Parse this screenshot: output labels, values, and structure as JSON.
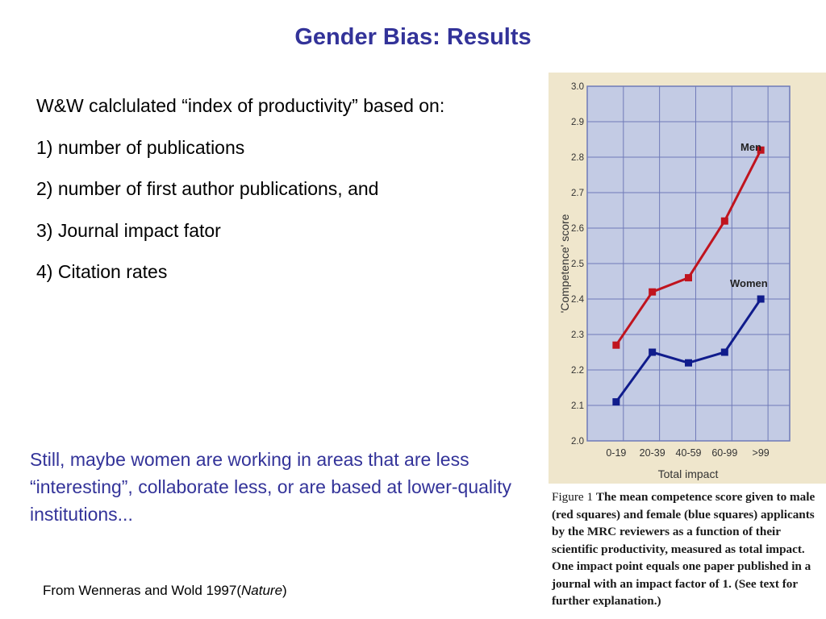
{
  "slide": {
    "title": "Gender Bias: Results",
    "bullets": [
      "W&W calclulated “index of productivity” based on:",
      "1) number of publications",
      "2) number of first author publications, and",
      "3) Journal impact fator",
      "4) Citation rates"
    ],
    "note": "Still, maybe women are working in areas that are less “interesting”, collaborate less, or are based at lower-quality institutions...",
    "source_prefix": "From Wenneras and Wold 1997(",
    "source_journal": "Nature",
    "source_suffix": ")"
  },
  "figure": {
    "caption_label": "Figure 1",
    "caption_text": "The mean competence score given to male (red squares) and female (blue squares) applicants by the MRC reviewers as a function of their scientific productivity, measured as total impact. One impact point equals one paper published in a journal with an impact factor of 1. (See text for further explanation.)"
  },
  "colors": {
    "title": "#333399",
    "men": "#c0141e",
    "women": "#101c8c",
    "plot_bg": "#c3cbe4",
    "grid": "#6f7ab8",
    "paper": "#efe6cc"
  },
  "chart_data": {
    "type": "line",
    "categories": [
      "0-19",
      "20-39",
      "40-59",
      "60-99",
      ">99"
    ],
    "series": [
      {
        "name": "Men",
        "values": [
          2.27,
          2.42,
          2.46,
          2.62,
          2.82
        ]
      },
      {
        "name": "Women",
        "values": [
          2.11,
          2.25,
          2.22,
          2.25,
          2.4
        ]
      }
    ],
    "xlabel": "Total impact",
    "ylabel": "'Competence' score",
    "ylim": [
      2.0,
      3.0
    ],
    "yticks": [
      "2.0",
      "2.1",
      "2.2",
      "2.3",
      "2.4",
      "2.5",
      "2.6",
      "2.7",
      "2.8",
      "2.9",
      "3.0"
    ],
    "grid": true,
    "legend": "inline labels near line ends"
  }
}
